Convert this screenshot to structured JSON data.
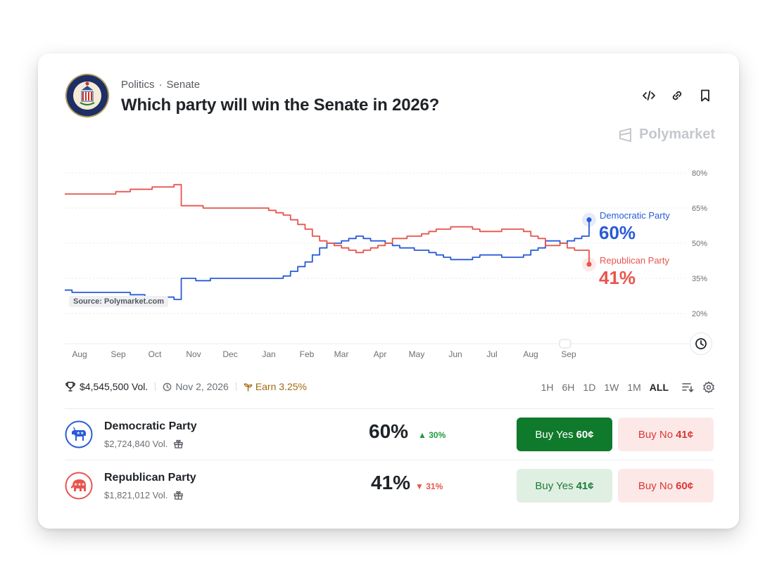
{
  "header": {
    "category": "Politics",
    "subcategory": "Senate",
    "title": "Which party will win the Senate in 2026?",
    "brand": "Polymarket"
  },
  "icons": [
    "embed-icon",
    "link-icon",
    "bookmark-icon",
    "clock-icon",
    "trophy-icon",
    "settings-icon",
    "gift-icon"
  ],
  "chart_data": {
    "type": "line",
    "source_label": "Source: Polymarket.com",
    "x_ticks": [
      "Aug",
      "Sep",
      "Oct",
      "Nov",
      "Dec",
      "Jan",
      "Feb",
      "Mar",
      "Apr",
      "May",
      "Jun",
      "Jul",
      "Aug",
      "Sep"
    ],
    "y_ticks": [
      "80%",
      "65%",
      "50%",
      "35%",
      "20%"
    ],
    "ylim": [
      20,
      80
    ],
    "grid": true,
    "series": [
      {
        "name": "Democratic Party",
        "label_value": "60%",
        "color": "#2a5bd7",
        "values": [
          30,
          29,
          29,
          29,
          29,
          29,
          29,
          29,
          29,
          28,
          28,
          27,
          27,
          27,
          27,
          26,
          35,
          35,
          34,
          34,
          35,
          35,
          35,
          35,
          35,
          35,
          35,
          35,
          35,
          35,
          36,
          38,
          40,
          42,
          45,
          48,
          50,
          50,
          51,
          52,
          53,
          52,
          51,
          51,
          50,
          49,
          48,
          48,
          47,
          47,
          46,
          45,
          44,
          43,
          43,
          43,
          44,
          45,
          45,
          45,
          44,
          44,
          44,
          45,
          47,
          48,
          51,
          51,
          50,
          51,
          52,
          53,
          60
        ]
      },
      {
        "name": "Republican Party",
        "label_value": "41%",
        "color": "#e8554e",
        "values": [
          71,
          71,
          71,
          71,
          71,
          71,
          71,
          72,
          72,
          73,
          73,
          73,
          74,
          74,
          74,
          75,
          66,
          66,
          66,
          65,
          65,
          65,
          65,
          65,
          65,
          65,
          65,
          65,
          64,
          63,
          62,
          60,
          58,
          56,
          53,
          51,
          50,
          49,
          48,
          47,
          46,
          47,
          48,
          49,
          50,
          52,
          52,
          53,
          53,
          54,
          55,
          56,
          56,
          57,
          57,
          57,
          56,
          55,
          55,
          55,
          56,
          56,
          56,
          55,
          53,
          52,
          49,
          49,
          50,
          48,
          47,
          47,
          41
        ]
      }
    ]
  },
  "market": {
    "volume": "$4,545,500 Vol.",
    "end_date": "Nov 2, 2026",
    "earn": "Earn 3.25%",
    "ranges": [
      "1H",
      "6H",
      "1D",
      "1W",
      "1M",
      "ALL"
    ],
    "active_range": "ALL"
  },
  "outcomes": [
    {
      "name": "Democratic Party",
      "volume": "$2,724,840 Vol.",
      "percent": "60%",
      "change": "30%",
      "change_dir": "up",
      "buy_yes_label": "Buy Yes",
      "buy_yes_price": "60¢",
      "buy_no_label": "Buy No",
      "buy_no_price": "41¢",
      "color": "#2a5bd7"
    },
    {
      "name": "Republican Party",
      "volume": "$1,821,012 Vol.",
      "percent": "41%",
      "change": "31%",
      "change_dir": "down",
      "buy_yes_label": "Buy Yes",
      "buy_yes_price": "41¢",
      "buy_no_label": "Buy No",
      "buy_no_price": "60¢",
      "color": "#e8554e"
    }
  ]
}
